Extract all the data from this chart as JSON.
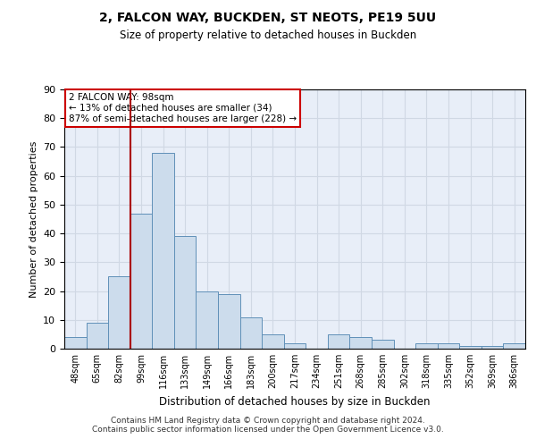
{
  "title_line1": "2, FALCON WAY, BUCKDEN, ST NEOTS, PE19 5UU",
  "title_line2": "Size of property relative to detached houses in Buckden",
  "xlabel": "Distribution of detached houses by size in Buckden",
  "ylabel": "Number of detached properties",
  "categories": [
    "48sqm",
    "65sqm",
    "82sqm",
    "99sqm",
    "116sqm",
    "133sqm",
    "149sqm",
    "166sqm",
    "183sqm",
    "200sqm",
    "217sqm",
    "234sqm",
    "251sqm",
    "268sqm",
    "285sqm",
    "302sqm",
    "318sqm",
    "335sqm",
    "352sqm",
    "369sqm",
    "386sqm"
  ],
  "values": [
    4,
    9,
    25,
    47,
    68,
    39,
    20,
    19,
    11,
    5,
    2,
    0,
    5,
    4,
    3,
    0,
    2,
    2,
    1,
    1,
    2
  ],
  "bar_color": "#ccdcec",
  "bar_edge_color": "#6090b8",
  "bar_edge_width": 0.7,
  "grid_color": "#d0d8e4",
  "background_color": "#e8eef8",
  "ylim": [
    0,
    90
  ],
  "yticks": [
    0,
    10,
    20,
    30,
    40,
    50,
    60,
    70,
    80,
    90
  ],
  "property_line_x": 3.0,
  "annotation_line1": "2 FALCON WAY: 98sqm",
  "annotation_line2": "← 13% of detached houses are smaller (34)",
  "annotation_line3": "87% of semi-detached houses are larger (228) →",
  "annotation_box_color": "#ffffff",
  "annotation_box_edge_color": "#cc0000",
  "property_line_color": "#aa0000",
  "footer_line1": "Contains HM Land Registry data © Crown copyright and database right 2024.",
  "footer_line2": "Contains public sector information licensed under the Open Government Licence v3.0."
}
